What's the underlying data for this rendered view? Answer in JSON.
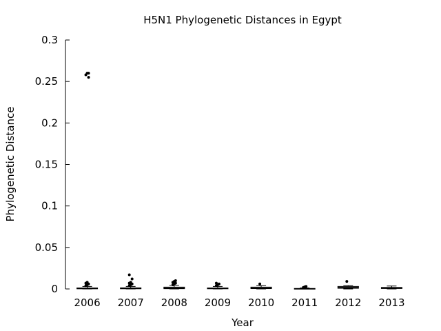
{
  "chart_data": {
    "type": "box",
    "title": "H5N1 Phylogenetic Distances in Egypt",
    "xlabel": "Year",
    "ylabel": "Phylogenetic Distance",
    "ylim": [
      0,
      0.3
    ],
    "yticks": [
      "0",
      "0.05",
      "0.1",
      "0.15",
      "0.2",
      "0.25",
      "0.3"
    ],
    "grid": false,
    "categories": [
      "2006",
      "2007",
      "2008",
      "2009",
      "2010",
      "2011",
      "2012",
      "2013"
    ],
    "boxes": [
      {
        "q1": 0.0002,
        "median": 0.0005,
        "q3": 0.0012,
        "whisker_low": 0.0,
        "whisker_high": 0.003,
        "outliers": [
          0.004,
          0.005,
          0.006,
          0.007,
          0.008,
          0.255,
          0.258,
          0.26,
          0.26
        ]
      },
      {
        "q1": 0.0002,
        "median": 0.0006,
        "q3": 0.0013,
        "whisker_low": 0.0,
        "whisker_high": 0.003,
        "outliers": [
          0.004,
          0.005,
          0.006,
          0.007,
          0.008,
          0.012,
          0.017
        ]
      },
      {
        "q1": 0.0003,
        "median": 0.001,
        "q3": 0.0022,
        "whisker_low": 0.0,
        "whisker_high": 0.0045,
        "outliers": [
          0.005,
          0.006,
          0.007,
          0.008,
          0.009,
          0.01
        ]
      },
      {
        "q1": 0.0002,
        "median": 0.0006,
        "q3": 0.0012,
        "whisker_low": 0.0,
        "whisker_high": 0.003,
        "outliers": [
          0.004,
          0.005,
          0.006,
          0.007
        ]
      },
      {
        "q1": 0.0004,
        "median": 0.001,
        "q3": 0.0022,
        "whisker_low": 0.0,
        "whisker_high": 0.004,
        "outliers": [
          0.006
        ]
      },
      {
        "q1": 0.0,
        "median": 0.0002,
        "q3": 0.0006,
        "whisker_low": 0.0,
        "whisker_high": 0.0012,
        "outliers": [
          0.0018,
          0.0025,
          0.003
        ]
      },
      {
        "q1": 0.0008,
        "median": 0.0018,
        "q3": 0.003,
        "whisker_low": 0.0,
        "whisker_high": 0.004,
        "outliers": [
          0.009
        ]
      },
      {
        "q1": 0.0005,
        "median": 0.0012,
        "q3": 0.0018,
        "whisker_low": 0.0,
        "whisker_high": 0.0035,
        "outliers": []
      }
    ]
  }
}
